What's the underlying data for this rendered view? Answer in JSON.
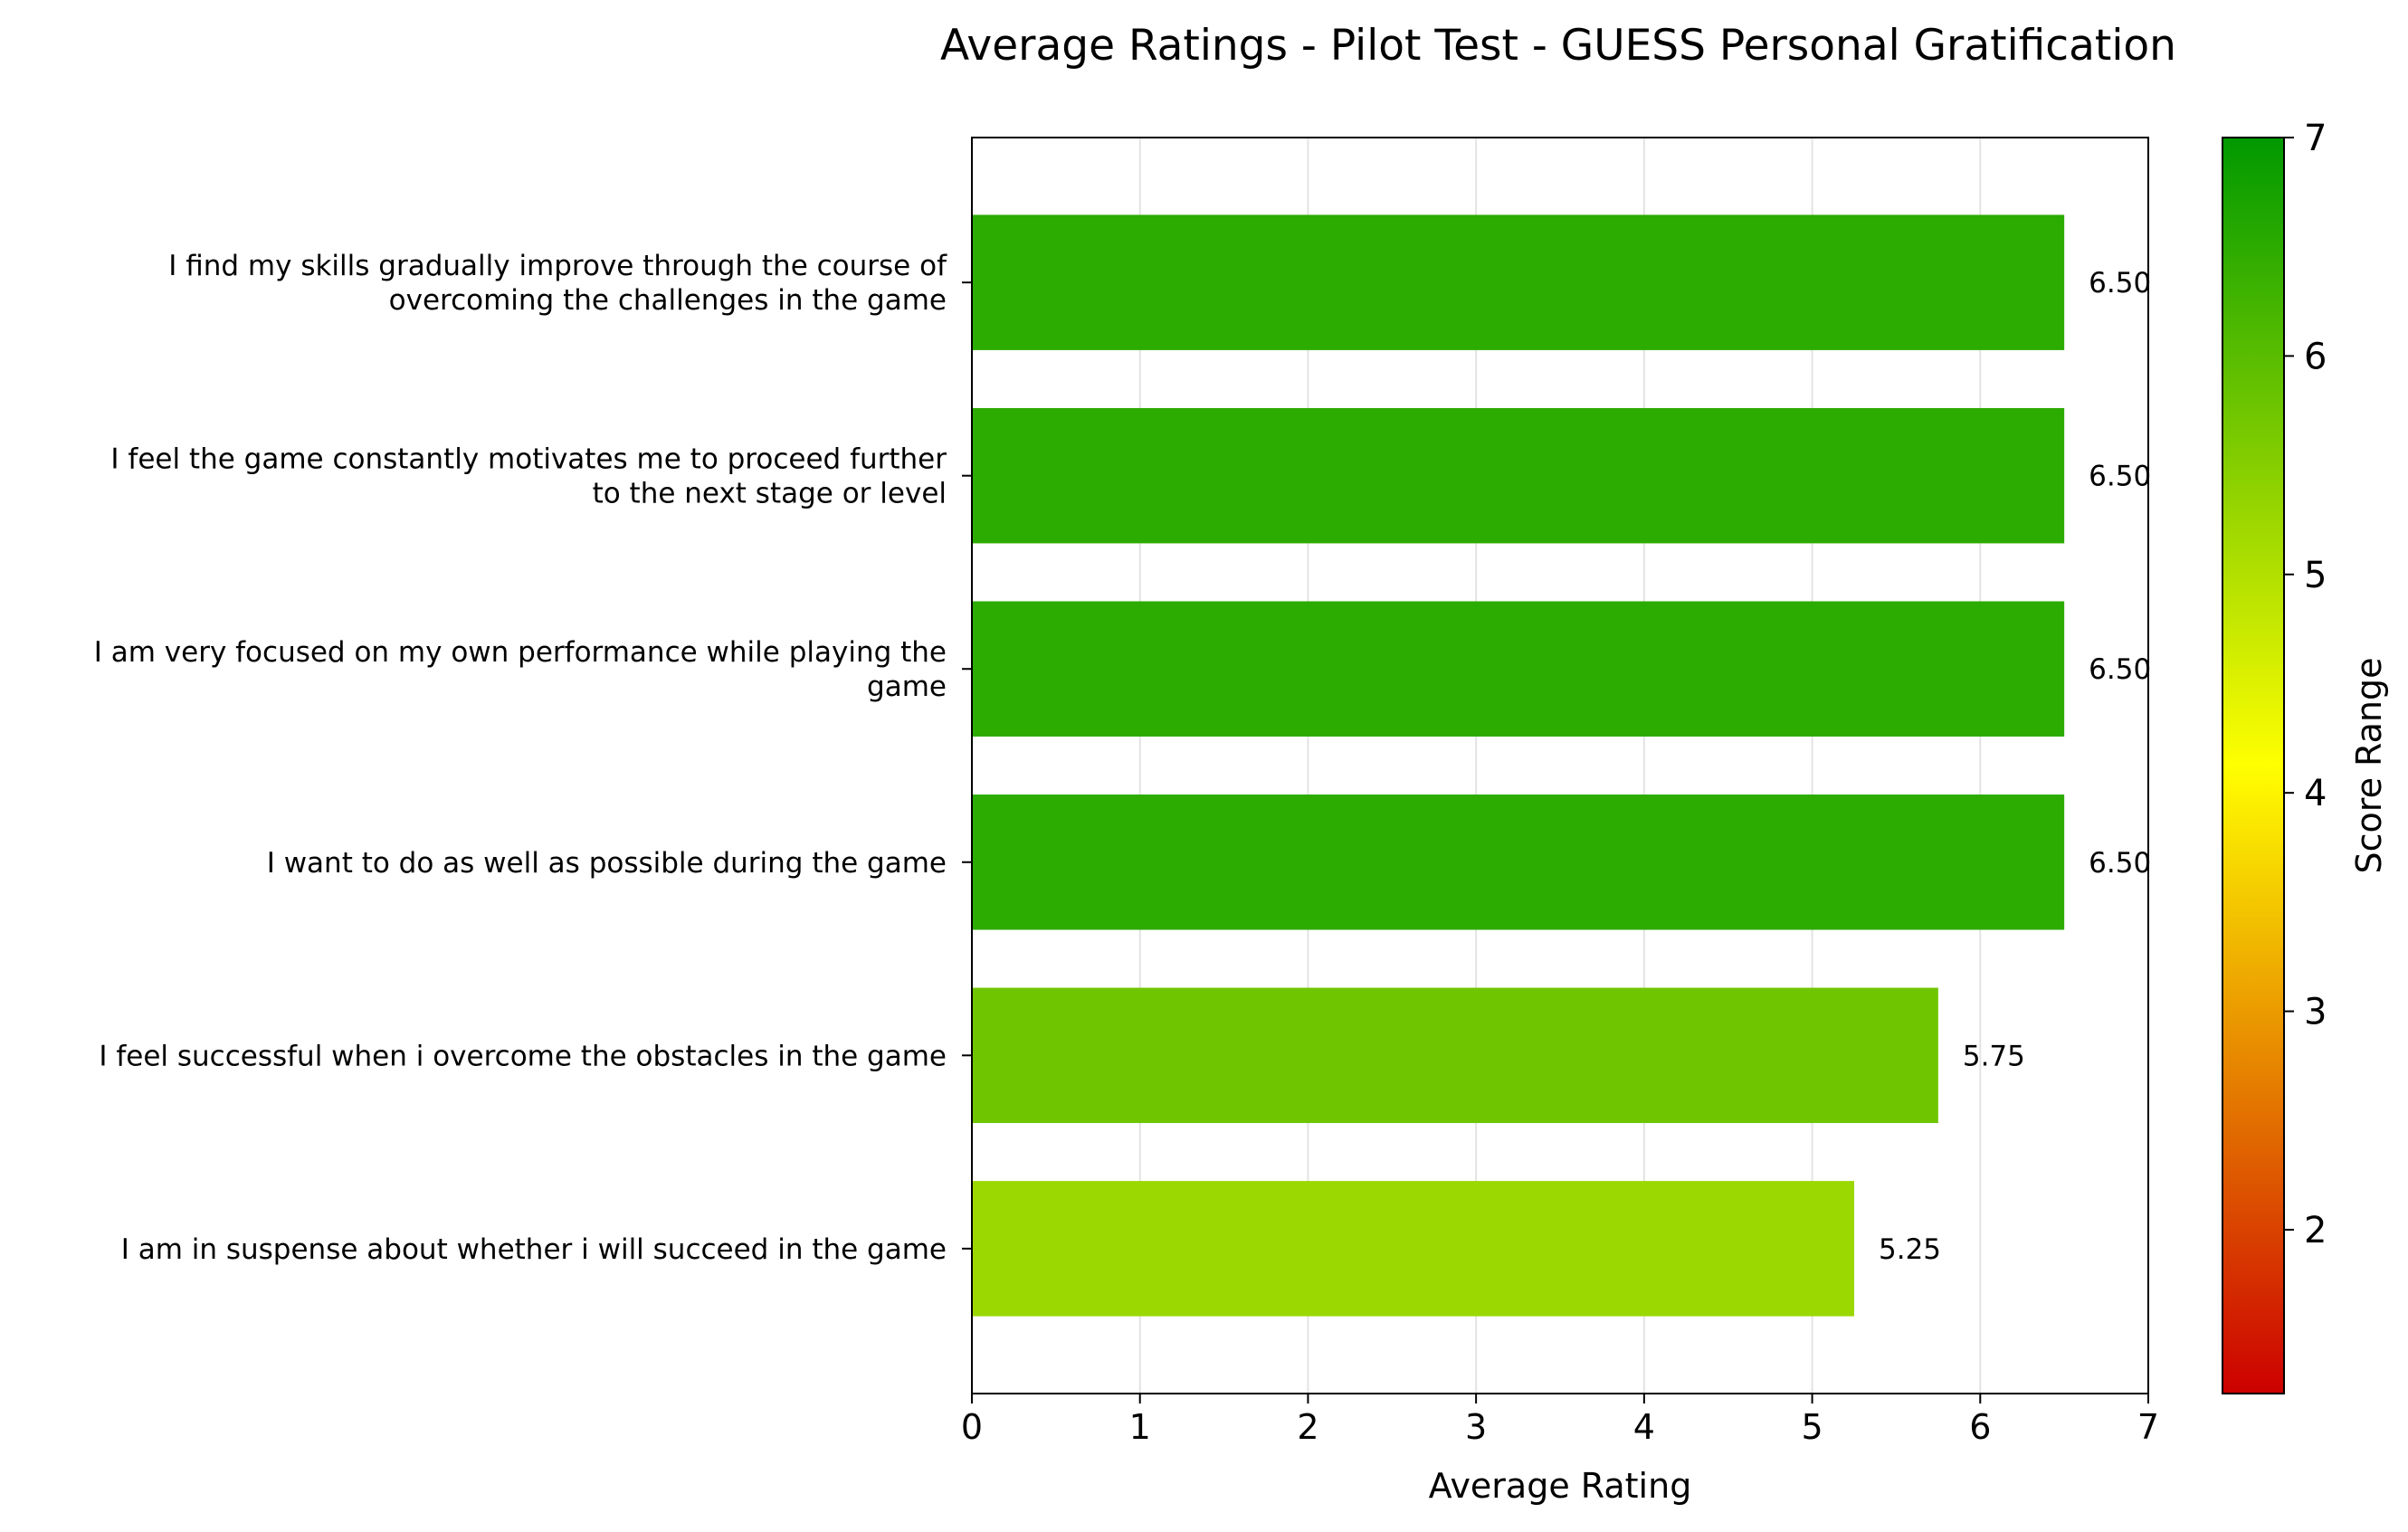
{
  "chart_data": {
    "type": "bar",
    "orientation": "horizontal",
    "title": "Average Ratings - Pilot Test - GUESS Personal Gratification",
    "xlabel": "Average Rating",
    "ylabel": "",
    "xlim": [
      0,
      7
    ],
    "xticks": [
      "0",
      "1",
      "2",
      "3",
      "4",
      "5",
      "6",
      "7"
    ],
    "grid": "vertical",
    "categories": [
      "I find my skills gradually improve through the course of\novercoming the challenges in the game",
      "I feel the game constantly motivates me to proceed further\nto the next stage or level",
      "I am very focused on my own performance while playing the\ngame",
      "I want to do as well as possible during the game",
      "I feel successful when i overcome the obstacles in the game",
      "I am in suspense about whether i will succeed in the game"
    ],
    "values": [
      6.5,
      6.5,
      6.5,
      6.5,
      5.75,
      5.25
    ],
    "value_labels": [
      "6.50",
      "6.50",
      "6.50",
      "6.50",
      "5.75",
      "5.25"
    ],
    "colorbar": {
      "label": "Score Range",
      "range": [
        1.25,
        7
      ],
      "ticks": [
        "2",
        "3",
        "4",
        "5",
        "6",
        "7"
      ],
      "colors": [
        "#cc0000",
        "#ffff00",
        "#009900"
      ]
    }
  }
}
